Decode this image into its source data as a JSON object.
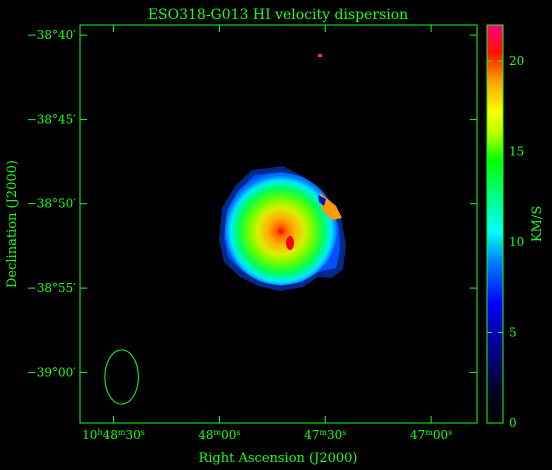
{
  "chart_data": {
    "type": "heatmap",
    "title": "ESO318-G013   HI velocity dispersion",
    "xlabel": "Right Ascension (J2000)",
    "ylabel": "Declination (J2000)",
    "colorbar_label": "KM/S",
    "colorbar": {
      "min": 0,
      "max": 22,
      "ticks": [
        0,
        5,
        10,
        15,
        20
      ]
    },
    "x_ticks": [
      {
        "value": 0,
        "parts": [
          [
            "10",
            "h"
          ],
          [
            "48",
            "m"
          ],
          [
            "30",
            "s"
          ]
        ]
      },
      {
        "value": 30,
        "parts": [
          [
            "48",
            "m"
          ],
          [
            "00",
            "s"
          ]
        ]
      },
      {
        "value": 60,
        "parts": [
          [
            "47",
            "m"
          ],
          [
            "30",
            "s"
          ]
        ]
      },
      {
        "value": 90,
        "parts": [
          [
            "47",
            "m"
          ],
          [
            "00",
            "s"
          ]
        ]
      }
    ],
    "xlim": [
      -9.5,
      103
    ],
    "y_ticks": [
      {
        "value": -38.6667,
        "label": "−38°40′"
      },
      {
        "value": -38.75,
        "label": "−38°45′"
      },
      {
        "value": -38.8333,
        "label": "−38°50′"
      },
      {
        "value": -38.9167,
        "label": "−38°55′"
      },
      {
        "value": -39.0,
        "label": "−39°00′"
      }
    ],
    "ylim": [
      -39.05,
      -38.6567
    ],
    "galaxy": {
      "center_x": 45.3,
      "center_y": -38.856,
      "peak_dispersion": 21,
      "edge_dispersion": 9
    },
    "beam": {
      "center_x": 2.3,
      "center_y": -39.0045,
      "width": 9.5,
      "height": 0.0535
    },
    "colors": {
      "axis": "#19ff19",
      "background": "#000000"
    }
  }
}
